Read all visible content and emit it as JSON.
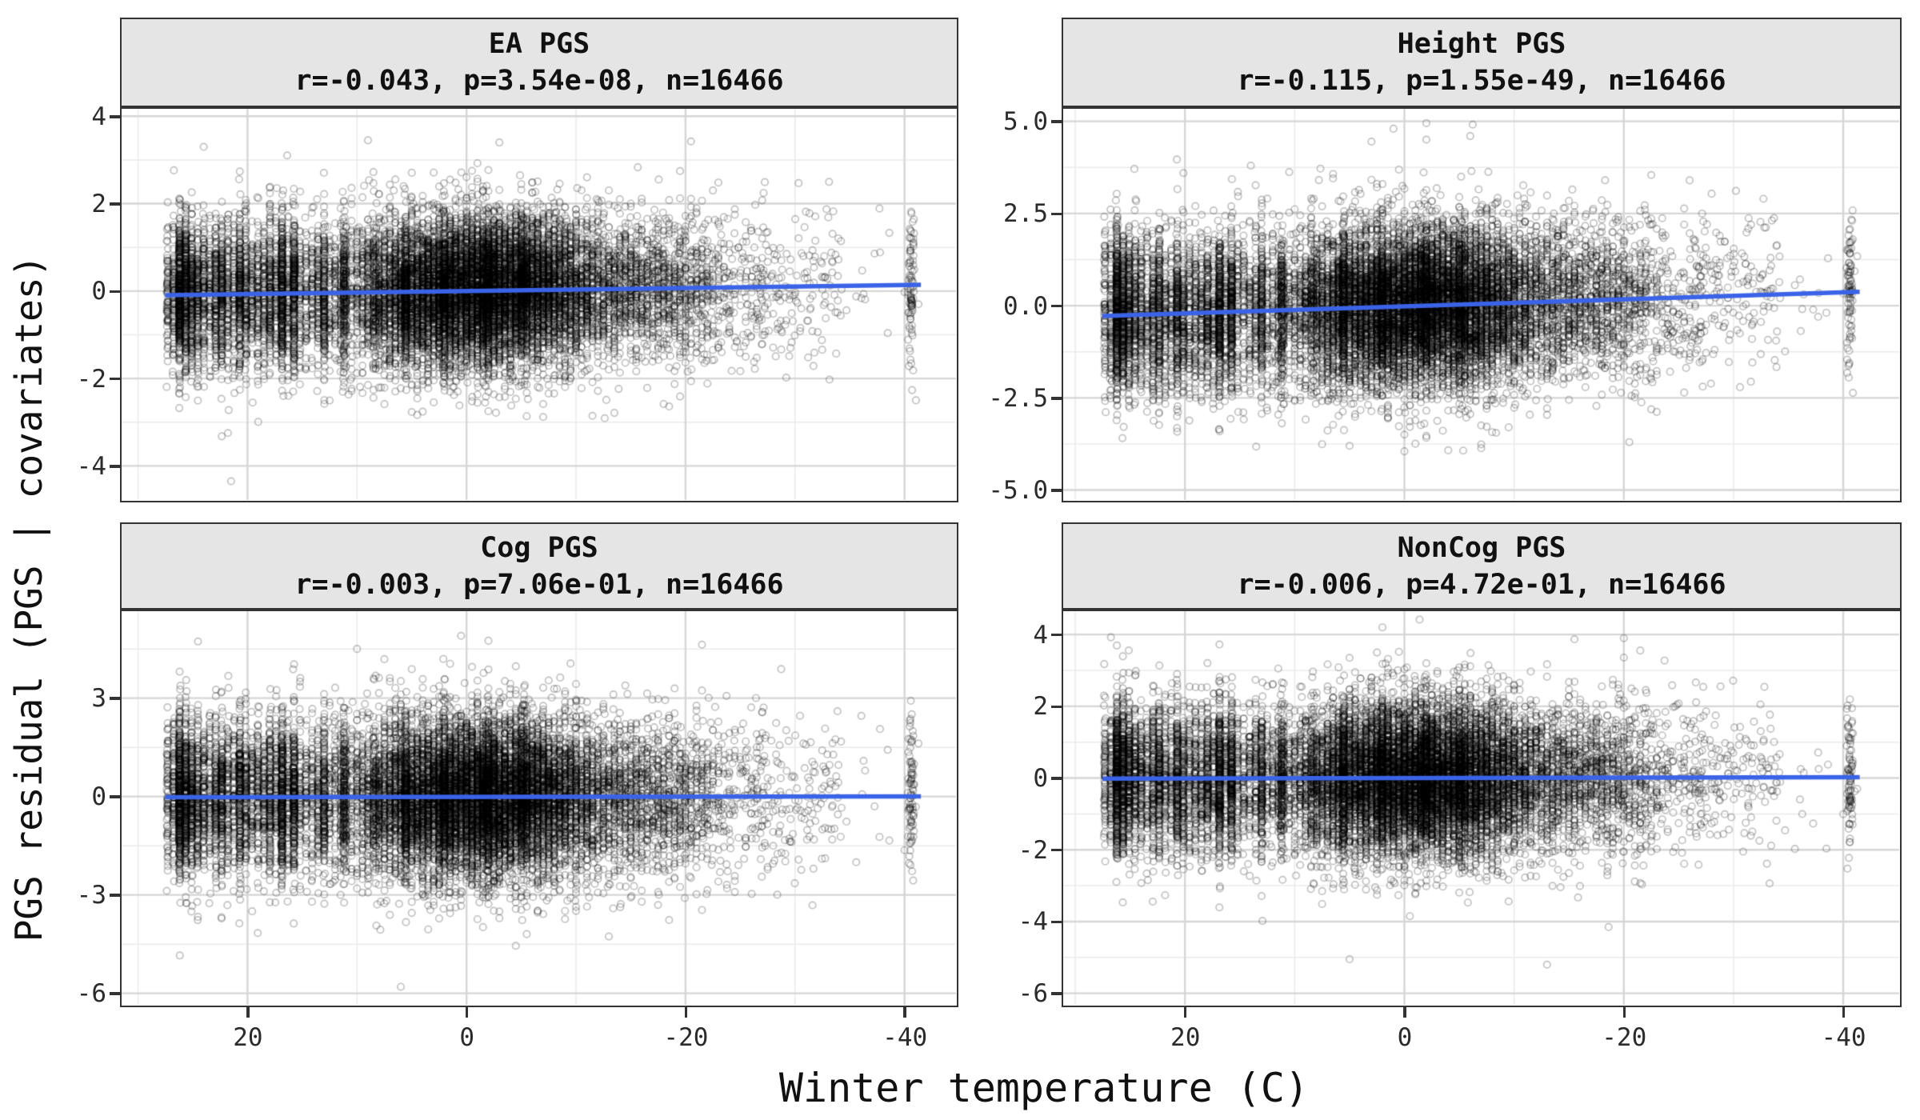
{
  "chart_data": {
    "type": "scatter",
    "layout": "2x2 facet grid, shared reversed x-axis, free y-axes, linear trend per panel",
    "x_axis": {
      "label": "Winter temperature (C)",
      "ticks": [
        20,
        0,
        -20,
        -40
      ],
      "tick_labels": [
        "20",
        "0",
        "-20",
        "-40"
      ],
      "minor_ticks": [
        30,
        10,
        -10,
        -30
      ],
      "reversed": true
    },
    "y_axis": {
      "label": "PGS residual (PGS | covariates)"
    },
    "n_per_panel": 16466,
    "x_seed": 7,
    "trend_span": [
      27.5,
      -41.5
    ],
    "point_style": {
      "radius": 4.2,
      "line_width": 1.7,
      "alpha": 0.24,
      "color": "0,0,0"
    },
    "colors": {
      "trend_line": "#3B63E8",
      "strip_bg": "#E5E5E5",
      "panel_border": "#333333",
      "grid_major": "#D6D6D6",
      "grid_minor": "#EBEBEB",
      "tick_mark": "#333333",
      "tick_label": "#2B2B2B",
      "text": "#111111",
      "background": "#FFFFFF"
    },
    "x_dist": {
      "description": "winter temperature distribution: discrete warm-station stripes, dense quantized mid cloud, sparse cold tail, isolated station near -40.6",
      "components": [
        {
          "kind": "stripes",
          "from": 27.3,
          "to": 13.0,
          "step": 0.55,
          "jitter": 0.045,
          "weight": 0.24,
          "boost_above": 24.3,
          "boost": 1.4
        },
        {
          "kind": "gauss",
          "mean": -1.5,
          "sd": 6.8,
          "clip": [
            -20,
            13.2
          ],
          "weight": 0.622,
          "quantize": 0.5,
          "quantize_frac": 0.72
        },
        {
          "kind": "stripes_list",
          "temps": [
            11.2,
            8.3,
            5.6,
            2.1,
            -1.8,
            -5.2
          ],
          "jitter": 0.05,
          "weight": 0.06
        },
        {
          "kind": "gauss",
          "mean": -19,
          "sd": 4,
          "clip": [
            -28,
            -12
          ],
          "weight": 0.06,
          "quantize": 0.5,
          "quantize_frac": 0.5
        },
        {
          "kind": "uniform",
          "from": -26,
          "to": -34,
          "weight": 0.009
        },
        {
          "kind": "gauss",
          "mean": -40.6,
          "sd": 0.15,
          "clip": [
            -41.1,
            -40.2
          ],
          "weight": 0.0055
        },
        {
          "kind": "uniform",
          "from": -34,
          "to": -41.5,
          "weight": 0.0015
        }
      ]
    },
    "panels": [
      {
        "title": "EA PGS",
        "subtitle": "r=-0.043, p=3.54e-08, n=16466",
        "stats": {
          "r": -0.043,
          "p": "3.54e-08",
          "n": 16466
        },
        "row": 0,
        "col": 0,
        "x_domain": [
          31.5,
          -44.7
        ],
        "y_domain": [
          4.17,
          -4.78
        ],
        "y_ticks": [
          4,
          2,
          0,
          -2,
          -4
        ],
        "y_tick_labels": [
          "4",
          "2",
          "0",
          "-2",
          "-4"
        ],
        "y_sd": 0.85,
        "trend": {
          "intercept": 0.0,
          "slope": -0.0035
        },
        "extra_points": [
          [
            21.5,
            -4.35
          ],
          [
            9,
            3.45
          ],
          [
            -3,
            3.4
          ],
          [
            24,
            3.3
          ]
        ],
        "seed": 101
      },
      {
        "title": "Height PGS",
        "subtitle": "r=-0.115, p=1.55e-49, n=16466",
        "stats": {
          "r": -0.115,
          "p": "1.55e-49",
          "n": 16466
        },
        "row": 0,
        "col": 1,
        "x_domain": [
          31.1,
          -45.1
        ],
        "y_domain": [
          5.34,
          -5.27
        ],
        "y_ticks": [
          5,
          2.5,
          0,
          -2.5,
          -5
        ],
        "y_tick_labels": [
          "5.0",
          "2.5",
          "0.0",
          "-2.5",
          "-5.0"
        ],
        "y_sd": 1.08,
        "trend": {
          "intercept": -0.02,
          "slope": -0.0095
        },
        "extra_points": [
          [
            -2,
            4.95
          ],
          [
            1,
            4.8
          ],
          [
            -6,
            4.6
          ],
          [
            3,
            4.45
          ],
          [
            14,
            3.8
          ],
          [
            0,
            -3.95
          ],
          [
            5,
            -3.8
          ],
          [
            -26,
            3.4
          ]
        ],
        "seed": 202
      },
      {
        "title": "Cog PGS",
        "subtitle": "r=-0.003, p=7.06e-01, n=16466",
        "stats": {
          "r": -0.003,
          "p": "7.06e-01",
          "n": 16466
        },
        "row": 1,
        "col": 0,
        "x_domain": [
          31.5,
          -44.7
        ],
        "y_domain": [
          5.65,
          -6.35
        ],
        "y_ticks": [
          3,
          0,
          -3,
          -6
        ],
        "y_tick_labels": [
          "3",
          "0",
          "-3",
          "-6"
        ],
        "y_sd": 1.2,
        "trend": {
          "intercept": -0.01,
          "slope": -0.0004
        },
        "extra_points": [
          [
            6,
            -5.8
          ],
          [
            0.5,
            4.9
          ],
          [
            -2,
            4.75
          ],
          [
            10,
            4.5
          ]
        ],
        "seed": 303
      },
      {
        "title": "NonCog PGS",
        "subtitle": "r=-0.006, p=4.72e-01, n=16466",
        "stats": {
          "r": -0.006,
          "p": "4.72e-01",
          "n": 16466
        },
        "row": 1,
        "col": 1,
        "x_domain": [
          31.1,
          -45.1
        ],
        "y_domain": [
          4.65,
          -6.32
        ],
        "y_ticks": [
          4,
          2,
          0,
          -2,
          -4,
          -6
        ],
        "y_tick_labels": [
          "4",
          "2",
          "0",
          "-2",
          "-4",
          "-6"
        ],
        "y_sd": 1.05,
        "trend": {
          "intercept": 0.0,
          "slope": -0.0006
        },
        "extra_points": [
          [
            2,
            4.2
          ],
          [
            -13,
            -5.2
          ],
          [
            5,
            -5.05
          ],
          [
            -20,
            3.9
          ]
        ],
        "seed": 404
      }
    ]
  }
}
